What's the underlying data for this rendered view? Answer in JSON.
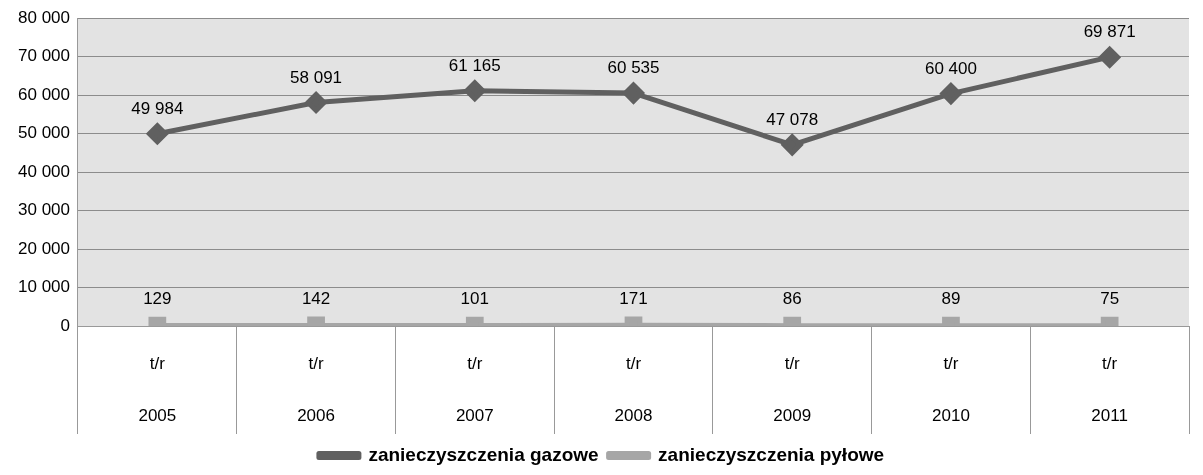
{
  "chart_data": {
    "type": "line",
    "categories": [
      "t/r\n2005",
      "t/r\n2006",
      "t/r\n2007",
      "t/r\n2008",
      "t/r\n2009",
      "t/r\n2010",
      "t/r\n2011"
    ],
    "series": [
      {
        "name": "zanieczyszczenia gazowe",
        "color": "#606060",
        "marker": "diamond",
        "values": [
          49984,
          58091,
          61165,
          60535,
          47078,
          60400,
          69871
        ]
      },
      {
        "name": "zanieczyszczenia pyłowe",
        "color": "#a6a6a6",
        "marker": "square",
        "values": [
          129,
          142,
          101,
          171,
          86,
          89,
          75
        ]
      }
    ],
    "ylim": [
      0,
      80000
    ],
    "yticks": [
      {
        "value": 0,
        "label": "0"
      },
      {
        "value": 10000,
        "label": "10 000"
      },
      {
        "value": 20000,
        "label": "20 000"
      },
      {
        "value": 30000,
        "label": "30 000"
      },
      {
        "value": 40000,
        "label": "40 000"
      },
      {
        "value": 50000,
        "label": "50 000"
      },
      {
        "value": 60000,
        "label": "60 000"
      },
      {
        "value": 70000,
        "label": "70 000"
      },
      {
        "value": 80000,
        "label": "80 000"
      }
    ],
    "grid": "y",
    "legend": "bottom",
    "data_labels": true,
    "line_style": "solid"
  }
}
